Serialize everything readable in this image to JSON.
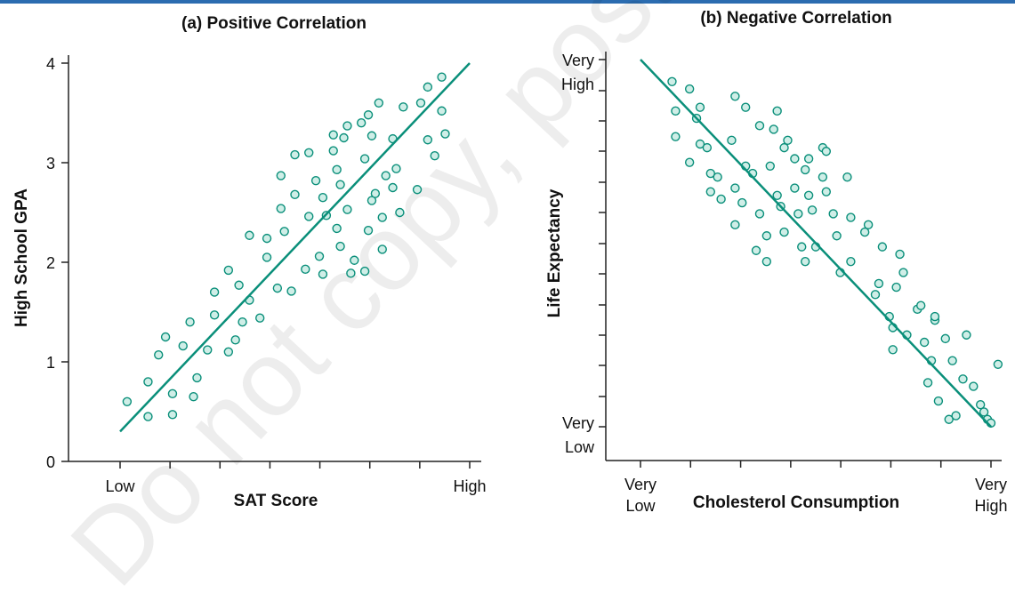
{
  "colors": {
    "accent": "#0a8f7a",
    "point_fill": "#cfeee7",
    "topbar": "#2b6cb0",
    "axis": "#222222"
  },
  "watermark": "Do not copy, post",
  "chart_data": [
    {
      "type": "scatter",
      "title": "(a) Positive Correlation",
      "xlabel": "SAT Score",
      "ylabel": "High School GPA",
      "x_tick_labels": [
        {
          "x": 0,
          "label": "Low"
        },
        {
          "x": 1,
          "label": "High"
        }
      ],
      "y_ticks": [
        0,
        1,
        2,
        3,
        4
      ],
      "xlim": [
        -0.075,
        1.03
      ],
      "ylim": [
        0,
        4.1
      ],
      "trend_line": [
        [
          0,
          0.3
        ],
        [
          1,
          4.0
        ]
      ],
      "points": [
        [
          0.02,
          0.6
        ],
        [
          0.08,
          0.45
        ],
        [
          0.08,
          0.8
        ],
        [
          0.11,
          1.07
        ],
        [
          0.13,
          1.25
        ],
        [
          0.15,
          0.68
        ],
        [
          0.15,
          0.47
        ],
        [
          0.18,
          1.16
        ],
        [
          0.2,
          1.4
        ],
        [
          0.21,
          0.65
        ],
        [
          0.22,
          0.84
        ],
        [
          0.25,
          1.12
        ],
        [
          0.27,
          1.47
        ],
        [
          0.27,
          1.7
        ],
        [
          0.31,
          1.1
        ],
        [
          0.31,
          1.92
        ],
        [
          0.33,
          1.22
        ],
        [
          0.34,
          1.77
        ],
        [
          0.35,
          1.4
        ],
        [
          0.37,
          1.62
        ],
        [
          0.37,
          2.27
        ],
        [
          0.4,
          1.44
        ],
        [
          0.42,
          2.24
        ],
        [
          0.42,
          2.05
        ],
        [
          0.45,
          1.74
        ],
        [
          0.46,
          2.87
        ],
        [
          0.46,
          2.54
        ],
        [
          0.47,
          2.31
        ],
        [
          0.49,
          1.71
        ],
        [
          0.5,
          2.68
        ],
        [
          0.5,
          3.08
        ],
        [
          0.53,
          1.93
        ],
        [
          0.54,
          3.1
        ],
        [
          0.54,
          2.46
        ],
        [
          0.56,
          2.82
        ],
        [
          0.57,
          2.06
        ],
        [
          0.58,
          1.88
        ],
        [
          0.58,
          2.65
        ],
        [
          0.59,
          2.47
        ],
        [
          0.61,
          3.28
        ],
        [
          0.61,
          3.12
        ],
        [
          0.62,
          2.34
        ],
        [
          0.62,
          2.93
        ],
        [
          0.63,
          2.16
        ],
        [
          0.63,
          2.78
        ],
        [
          0.64,
          3.25
        ],
        [
          0.65,
          2.53
        ],
        [
          0.65,
          3.37
        ],
        [
          0.66,
          1.89
        ],
        [
          0.67,
          2.02
        ],
        [
          0.69,
          3.4
        ],
        [
          0.7,
          1.91
        ],
        [
          0.7,
          3.04
        ],
        [
          0.71,
          3.48
        ],
        [
          0.71,
          2.32
        ],
        [
          0.72,
          3.27
        ],
        [
          0.72,
          2.62
        ],
        [
          0.73,
          2.69
        ],
        [
          0.74,
          3.6
        ],
        [
          0.75,
          2.13
        ],
        [
          0.75,
          2.45
        ],
        [
          0.76,
          2.87
        ],
        [
          0.78,
          3.24
        ],
        [
          0.78,
          2.75
        ],
        [
          0.79,
          2.94
        ],
        [
          0.8,
          2.5
        ],
        [
          0.81,
          3.56
        ],
        [
          0.85,
          2.73
        ],
        [
          0.86,
          3.6
        ],
        [
          0.88,
          3.23
        ],
        [
          0.88,
          3.76
        ],
        [
          0.9,
          3.07
        ],
        [
          0.92,
          3.86
        ],
        [
          0.92,
          3.52
        ],
        [
          0.93,
          3.29
        ]
      ]
    },
    {
      "type": "scatter",
      "title": "(b) Negative Correlation",
      "xlabel": "Cholesterol Consumption",
      "ylabel": "Life Expectancy",
      "x_tick_labels": [
        {
          "x": 0,
          "label": "Very Low"
        },
        {
          "x": 1,
          "label": "Very High"
        }
      ],
      "y_tick_labels": [
        {
          "y": 0,
          "label": "Very Low"
        },
        {
          "y": 1,
          "label": "Very High"
        }
      ],
      "trend_line": [
        [
          0,
          1.0
        ],
        [
          1,
          0.0
        ]
      ],
      "points": [
        [
          0.09,
          0.94
        ],
        [
          0.1,
          0.86
        ],
        [
          0.1,
          0.79
        ],
        [
          0.14,
          0.72
        ],
        [
          0.14,
          0.92
        ],
        [
          0.16,
          0.84
        ],
        [
          0.17,
          0.77
        ],
        [
          0.17,
          0.87
        ],
        [
          0.19,
          0.76
        ],
        [
          0.2,
          0.69
        ],
        [
          0.2,
          0.64
        ],
        [
          0.22,
          0.68
        ],
        [
          0.23,
          0.62
        ],
        [
          0.27,
          0.9
        ],
        [
          0.26,
          0.78
        ],
        [
          0.27,
          0.65
        ],
        [
          0.27,
          0.55
        ],
        [
          0.29,
          0.61
        ],
        [
          0.3,
          0.87
        ],
        [
          0.3,
          0.71
        ],
        [
          0.32,
          0.69
        ],
        [
          0.33,
          0.48
        ],
        [
          0.34,
          0.82
        ],
        [
          0.34,
          0.58
        ],
        [
          0.36,
          0.52
        ],
        [
          0.36,
          0.45
        ],
        [
          0.37,
          0.71
        ],
        [
          0.38,
          0.81
        ],
        [
          0.39,
          0.86
        ],
        [
          0.39,
          0.63
        ],
        [
          0.4,
          0.6
        ],
        [
          0.41,
          0.53
        ],
        [
          0.41,
          0.76
        ],
        [
          0.42,
          0.78
        ],
        [
          0.44,
          0.73
        ],
        [
          0.44,
          0.65
        ],
        [
          0.45,
          0.58
        ],
        [
          0.46,
          0.49
        ],
        [
          0.47,
          0.45
        ],
        [
          0.47,
          0.7
        ],
        [
          0.48,
          0.73
        ],
        [
          0.48,
          0.63
        ],
        [
          0.49,
          0.59
        ],
        [
          0.5,
          0.49
        ],
        [
          0.52,
          0.76
        ],
        [
          0.52,
          0.68
        ],
        [
          0.53,
          0.64
        ],
        [
          0.53,
          0.75
        ],
        [
          0.55,
          0.58
        ],
        [
          0.56,
          0.52
        ],
        [
          0.57,
          0.42
        ],
        [
          0.59,
          0.68
        ],
        [
          0.6,
          0.57
        ],
        [
          0.6,
          0.45
        ],
        [
          0.64,
          0.53
        ],
        [
          0.65,
          0.55
        ],
        [
          0.67,
          0.36
        ],
        [
          0.68,
          0.39
        ],
        [
          0.69,
          0.49
        ],
        [
          0.71,
          0.3
        ],
        [
          0.72,
          0.27
        ],
        [
          0.72,
          0.21
        ],
        [
          0.73,
          0.38
        ],
        [
          0.74,
          0.47
        ],
        [
          0.75,
          0.42
        ],
        [
          0.76,
          0.25
        ],
        [
          0.79,
          0.32
        ],
        [
          0.8,
          0.33
        ],
        [
          0.81,
          0.23
        ],
        [
          0.82,
          0.12
        ],
        [
          0.83,
          0.18
        ],
        [
          0.84,
          0.29
        ],
        [
          0.85,
          0.07
        ],
        [
          0.87,
          0.24
        ],
        [
          0.88,
          0.02
        ],
        [
          0.89,
          0.18
        ],
        [
          0.9,
          0.03
        ],
        [
          0.92,
          0.13
        ],
        [
          0.95,
          0.11
        ],
        [
          0.97,
          0.06
        ],
        [
          0.98,
          0.04
        ],
        [
          0.99,
          0.02
        ],
        [
          1.0,
          0.01
        ],
        [
          1.02,
          0.17
        ],
        [
          0.93,
          0.25
        ],
        [
          0.84,
          0.3
        ]
      ]
    }
  ]
}
